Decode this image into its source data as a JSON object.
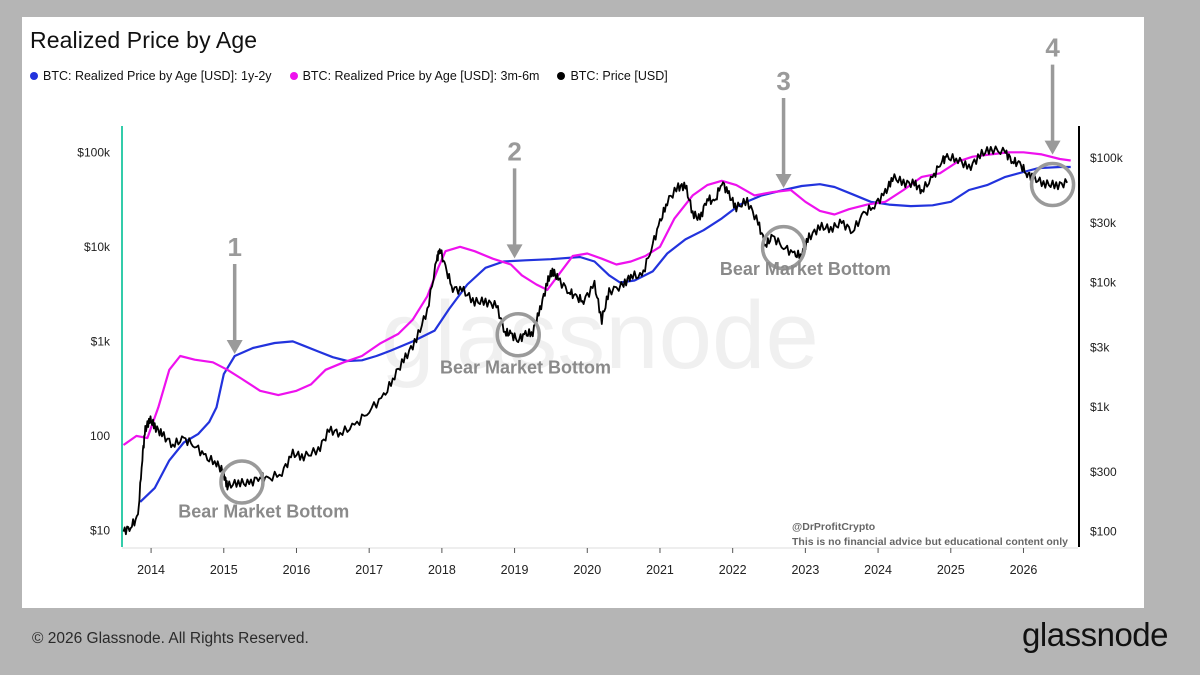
{
  "chart_data": {
    "type": "line",
    "title": "Realized Price by Age",
    "legend_placement": "top-left",
    "watermark": "glassnode",
    "colors": {
      "series_1y2y": "#2233dd",
      "series_3m6m": "#ee11ee",
      "series_price": "#000000",
      "annotation": "#9a9a9a",
      "left_axis": "#33ccaa"
    },
    "series": [
      {
        "name": "BTC: Realized Price by Age [USD]: 1y-2y",
        "color": "#2233dd",
        "axis": "left",
        "points": [
          [
            2013.85,
            20
          ],
          [
            2014.05,
            28
          ],
          [
            2014.25,
            55
          ],
          [
            2014.45,
            85
          ],
          [
            2014.65,
            105
          ],
          [
            2014.8,
            140
          ],
          [
            2014.9,
            200
          ],
          [
            2015.0,
            450
          ],
          [
            2015.15,
            700
          ],
          [
            2015.4,
            850
          ],
          [
            2015.7,
            960
          ],
          [
            2015.95,
            1000
          ],
          [
            2016.1,
            900
          ],
          [
            2016.3,
            780
          ],
          [
            2016.5,
            680
          ],
          [
            2016.7,
            620
          ],
          [
            2016.9,
            630
          ],
          [
            2017.1,
            700
          ],
          [
            2017.3,
            800
          ],
          [
            2017.6,
            1000
          ],
          [
            2017.9,
            1300
          ],
          [
            2018.1,
            2200
          ],
          [
            2018.35,
            4000
          ],
          [
            2018.6,
            6000
          ],
          [
            2018.85,
            7000
          ],
          [
            2019.15,
            7200
          ],
          [
            2019.5,
            7400
          ],
          [
            2019.9,
            7800
          ],
          [
            2020.1,
            7000
          ],
          [
            2020.3,
            5000
          ],
          [
            2020.45,
            4200
          ],
          [
            2020.65,
            4400
          ],
          [
            2020.9,
            5500
          ],
          [
            2021.1,
            8500
          ],
          [
            2021.35,
            12000
          ],
          [
            2021.6,
            15000
          ],
          [
            2021.85,
            20000
          ],
          [
            2022.1,
            28000
          ],
          [
            2022.4,
            35000
          ],
          [
            2022.7,
            40000
          ],
          [
            2022.95,
            44000
          ],
          [
            2023.2,
            46000
          ],
          [
            2023.4,
            43000
          ],
          [
            2023.65,
            36000
          ],
          [
            2023.9,
            30000
          ],
          [
            2024.15,
            28000
          ],
          [
            2024.45,
            27000
          ],
          [
            2024.75,
            27500
          ],
          [
            2025.0,
            30000
          ],
          [
            2025.25,
            40000
          ],
          [
            2025.5,
            45000
          ],
          [
            2025.75,
            55000
          ],
          [
            2026.0,
            62000
          ],
          [
            2026.2,
            68000
          ],
          [
            2026.5,
            70000
          ],
          [
            2026.65,
            70000
          ]
        ]
      },
      {
        "name": "BTC: Realized Price by Age [USD]: 3m-6m",
        "color": "#ee11ee",
        "axis": "left",
        "points": [
          [
            2013.62,
            80
          ],
          [
            2013.8,
            100
          ],
          [
            2013.95,
            95
          ],
          [
            2014.1,
            200
          ],
          [
            2014.25,
            500
          ],
          [
            2014.4,
            700
          ],
          [
            2014.6,
            640
          ],
          [
            2014.85,
            600
          ],
          [
            2015.05,
            500
          ],
          [
            2015.25,
            400
          ],
          [
            2015.5,
            300
          ],
          [
            2015.75,
            270
          ],
          [
            2016.0,
            300
          ],
          [
            2016.2,
            350
          ],
          [
            2016.4,
            500
          ],
          [
            2016.65,
            600
          ],
          [
            2016.9,
            700
          ],
          [
            2017.15,
            950
          ],
          [
            2017.4,
            1200
          ],
          [
            2017.6,
            1700
          ],
          [
            2017.8,
            3000
          ],
          [
            2017.95,
            6000
          ],
          [
            2018.05,
            9000
          ],
          [
            2018.25,
            10000
          ],
          [
            2018.45,
            9000
          ],
          [
            2018.7,
            7500
          ],
          [
            2018.95,
            6500
          ],
          [
            2019.1,
            5000
          ],
          [
            2019.3,
            4000
          ],
          [
            2019.45,
            3500
          ],
          [
            2019.6,
            5000
          ],
          [
            2019.8,
            8000
          ],
          [
            2020.0,
            8500
          ],
          [
            2020.2,
            7500
          ],
          [
            2020.4,
            6500
          ],
          [
            2020.6,
            7000
          ],
          [
            2020.8,
            8000
          ],
          [
            2021.0,
            10000
          ],
          [
            2021.2,
            20000
          ],
          [
            2021.45,
            35000
          ],
          [
            2021.65,
            45000
          ],
          [
            2021.85,
            50000
          ],
          [
            2022.05,
            45000
          ],
          [
            2022.3,
            35000
          ],
          [
            2022.55,
            38000
          ],
          [
            2022.8,
            40000
          ],
          [
            2023.0,
            30000
          ],
          [
            2023.2,
            24000
          ],
          [
            2023.4,
            22000
          ],
          [
            2023.6,
            25000
          ],
          [
            2023.85,
            28000
          ],
          [
            2024.1,
            30000
          ],
          [
            2024.35,
            40000
          ],
          [
            2024.6,
            55000
          ],
          [
            2024.85,
            60000
          ],
          [
            2025.1,
            80000
          ],
          [
            2025.3,
            90000
          ],
          [
            2025.55,
            95000
          ],
          [
            2025.8,
            100000
          ],
          [
            2026.0,
            100000
          ],
          [
            2026.25,
            95000
          ],
          [
            2026.5,
            85000
          ],
          [
            2026.65,
            82000
          ]
        ]
      },
      {
        "name": "BTC: Price [USD]",
        "color": "#000000",
        "axis": "right",
        "points": [
          [
            2013.62,
            100
          ],
          [
            2013.72,
            110
          ],
          [
            2013.82,
            130
          ],
          [
            2013.88,
            400
          ],
          [
            2013.92,
            650
          ],
          [
            2013.98,
            800
          ],
          [
            2014.05,
            700
          ],
          [
            2014.15,
            600
          ],
          [
            2014.3,
            500
          ],
          [
            2014.45,
            550
          ],
          [
            2014.6,
            500
          ],
          [
            2014.75,
            390
          ],
          [
            2014.9,
            360
          ],
          [
            2015.0,
            290
          ],
          [
            2015.05,
            230
          ],
          [
            2015.2,
            250
          ],
          [
            2015.35,
            240
          ],
          [
            2015.5,
            280
          ],
          [
            2015.6,
            260
          ],
          [
            2015.8,
            300
          ],
          [
            2015.95,
            420
          ],
          [
            2016.1,
            400
          ],
          [
            2016.3,
            450
          ],
          [
            2016.45,
            650
          ],
          [
            2016.6,
            620
          ],
          [
            2016.8,
            700
          ],
          [
            2017.0,
            950
          ],
          [
            2017.2,
            1200
          ],
          [
            2017.35,
            1800
          ],
          [
            2017.5,
            2500
          ],
          [
            2017.65,
            3500
          ],
          [
            2017.8,
            6000
          ],
          [
            2017.93,
            15000
          ],
          [
            2017.97,
            19000
          ],
          [
            2018.05,
            13000
          ],
          [
            2018.15,
            9000
          ],
          [
            2018.3,
            8500
          ],
          [
            2018.45,
            7000
          ],
          [
            2018.6,
            7000
          ],
          [
            2018.75,
            6500
          ],
          [
            2018.87,
            4000
          ],
          [
            2018.95,
            3800
          ],
          [
            2019.05,
            3500
          ],
          [
            2019.15,
            3800
          ],
          [
            2019.25,
            4000
          ],
          [
            2019.35,
            6000
          ],
          [
            2019.45,
            10000
          ],
          [
            2019.52,
            12500
          ],
          [
            2019.6,
            10500
          ],
          [
            2019.75,
            8500
          ],
          [
            2019.85,
            7500
          ],
          [
            2019.95,
            7200
          ],
          [
            2020.1,
            9500
          ],
          [
            2020.2,
            5000
          ],
          [
            2020.3,
            8500
          ],
          [
            2020.5,
            9500
          ],
          [
            2020.6,
            11500
          ],
          [
            2020.75,
            11000
          ],
          [
            2020.88,
            19000
          ],
          [
            2021.0,
            30000
          ],
          [
            2021.1,
            45000
          ],
          [
            2021.25,
            58000
          ],
          [
            2021.35,
            60000
          ],
          [
            2021.45,
            36000
          ],
          [
            2021.55,
            32000
          ],
          [
            2021.65,
            48000
          ],
          [
            2021.75,
            43000
          ],
          [
            2021.85,
            65000
          ],
          [
            2021.95,
            50000
          ],
          [
            2022.05,
            40000
          ],
          [
            2022.2,
            45000
          ],
          [
            2022.35,
            30000
          ],
          [
            2022.45,
            20000
          ],
          [
            2022.55,
            23000
          ],
          [
            2022.7,
            19500
          ],
          [
            2022.85,
            16500
          ],
          [
            2022.95,
            16800
          ],
          [
            2023.05,
            23000
          ],
          [
            2023.2,
            28000
          ],
          [
            2023.35,
            27000
          ],
          [
            2023.5,
            30000
          ],
          [
            2023.65,
            26000
          ],
          [
            2023.8,
            35000
          ],
          [
            2023.95,
            42000
          ],
          [
            2024.1,
            52000
          ],
          [
            2024.2,
            70000
          ],
          [
            2024.35,
            63000
          ],
          [
            2024.5,
            62000
          ],
          [
            2024.6,
            55000
          ],
          [
            2024.75,
            68000
          ],
          [
            2024.87,
            95000
          ],
          [
            2024.95,
            100000
          ],
          [
            2025.1,
            98000
          ],
          [
            2025.25,
            82000
          ],
          [
            2025.4,
            105000
          ],
          [
            2025.55,
            118000
          ],
          [
            2025.75,
            110000
          ],
          [
            2025.85,
            95000
          ],
          [
            2025.95,
            88000
          ],
          [
            2026.05,
            75000
          ],
          [
            2026.15,
            68000
          ],
          [
            2026.3,
            62000
          ],
          [
            2026.45,
            60000
          ],
          [
            2026.6,
            63000
          ]
        ]
      }
    ],
    "x_axis": {
      "range": [
        2013.6,
        2026.75
      ],
      "ticks": [
        "2014",
        "2015",
        "2016",
        "2017",
        "2018",
        "2019",
        "2020",
        "2021",
        "2022",
        "2023",
        "2024",
        "2025",
        "2026"
      ]
    },
    "y_left": {
      "scale": "log",
      "range": [
        7,
        190000
      ],
      "ticks": [
        {
          "value": 10,
          "label": "$10"
        },
        {
          "value": 100,
          "label": "100"
        },
        {
          "value": 1000,
          "label": "$1k"
        },
        {
          "value": 10000,
          "label": "$10k"
        },
        {
          "value": 100000,
          "label": "$100k"
        }
      ]
    },
    "y_right": {
      "scale": "log",
      "range": [
        78,
        180000
      ],
      "ticks": [
        {
          "value": 100,
          "label": "$100"
        },
        {
          "value": 300,
          "label": "$300"
        },
        {
          "value": 1000,
          "label": "$1k"
        },
        {
          "value": 3000,
          "label": "$3k"
        },
        {
          "value": 10000,
          "label": "$10k"
        },
        {
          "value": 30000,
          "label": "$30k"
        },
        {
          "value": 100000,
          "label": "$100k"
        }
      ]
    },
    "annotations": {
      "markers": [
        {
          "label": "1",
          "x": 2015.15,
          "y": 700
        },
        {
          "label": "2",
          "x": 2019.0,
          "y": 7200
        },
        {
          "label": "3",
          "x": 2022.7,
          "y": 40000
        },
        {
          "label": "4",
          "x": 2026.4,
          "y": 90000
        }
      ],
      "circles": [
        {
          "x": 2015.25,
          "y": 250,
          "axis": "right"
        },
        {
          "x": 2019.05,
          "y": 3800,
          "axis": "right"
        },
        {
          "x": 2022.7,
          "y": 19000,
          "axis": "right"
        },
        {
          "x": 2026.4,
          "y": 61000,
          "axis": "right"
        }
      ],
      "bottom_labels": [
        {
          "text": "Bear Market Bottom",
          "x": 2015.55,
          "y": 130,
          "axis": "right"
        },
        {
          "text": "Bear Market Bottom",
          "x": 2019.15,
          "y": 1850,
          "axis": "right"
        },
        {
          "text": "Bear Market Bottom",
          "x": 2023.0,
          "y": 11500,
          "axis": "right"
        }
      ],
      "credit": [
        "@DrProfitCrypto",
        "This is no financial advice but educational content only"
      ]
    }
  },
  "footer": {
    "copyright": "© 2026 Glassnode. All Rights Reserved.",
    "brand": "glassnode"
  }
}
